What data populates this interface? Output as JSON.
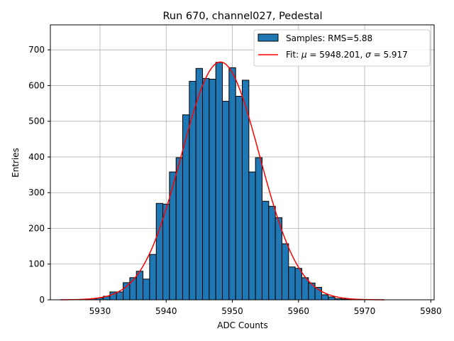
{
  "chart_data": {
    "type": "bar",
    "title": "Run 670, channel027, Pedestal",
    "xlabel": "ADC Counts",
    "ylabel": "Entries",
    "xlim": [
      5922.5,
      5980.5
    ],
    "ylim": [
      0,
      770
    ],
    "xticks": [
      5930,
      5940,
      5950,
      5960,
      5970,
      5980
    ],
    "yticks": [
      0,
      100,
      200,
      300,
      400,
      500,
      600,
      700
    ],
    "grid": true,
    "legend_position": "top-right",
    "bin_width": 1,
    "histogram": {
      "name": "Samples: RMS=5.88",
      "color": "#1f77b4",
      "edge_color": "#000000",
      "bin_centers": [
        5927,
        5928,
        5929,
        5930,
        5931,
        5932,
        5933,
        5934,
        5935,
        5936,
        5937,
        5938,
        5939,
        5940,
        5941,
        5942,
        5943,
        5944,
        5945,
        5946,
        5947,
        5948,
        5949,
        5950,
        5951,
        5952,
        5953,
        5954,
        5955,
        5956,
        5957,
        5958,
        5959,
        5960,
        5961,
        5962,
        5963,
        5964,
        5965,
        5966,
        5967,
        5968,
        5969
      ],
      "values": [
        1,
        1,
        3,
        5,
        10,
        22,
        22,
        48,
        62,
        80,
        58,
        127,
        270,
        268,
        358,
        398,
        518,
        612,
        648,
        620,
        618,
        665,
        556,
        650,
        570,
        615,
        358,
        398,
        276,
        262,
        230,
        157,
        92,
        88,
        62,
        47,
        35,
        14,
        8,
        3,
        2,
        1,
        1
      ]
    },
    "fit": {
      "name_prefix": "Fit: ",
      "mu_symbol": "μ",
      "mu_text": " = 5948.201, ",
      "sigma_symbol": "σ",
      "sigma_text": " = 5.917",
      "color": "#ff0000",
      "mu": 5948.201,
      "sigma": 5.917,
      "amplitude": 666,
      "x_range": [
        5924,
        5973
      ]
    }
  }
}
